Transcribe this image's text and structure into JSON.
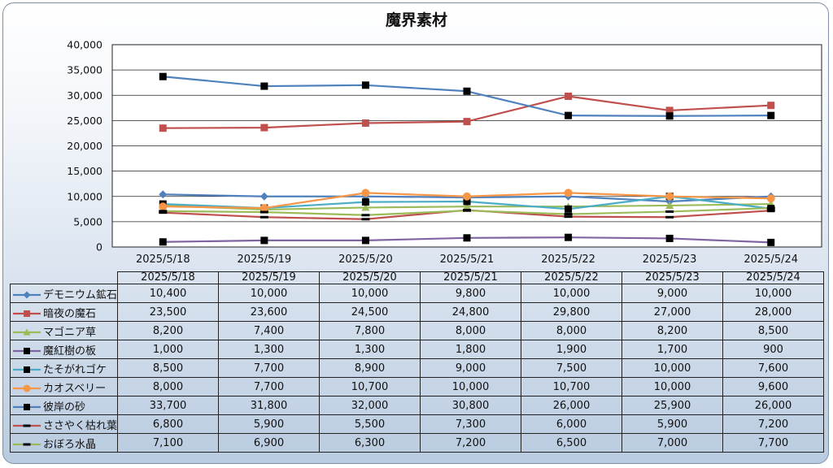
{
  "chart_data": {
    "type": "line",
    "title": "魔界素材",
    "categories": [
      "2025/5/18",
      "2025/5/19",
      "2025/5/20",
      "2025/5/21",
      "2025/5/22",
      "2025/5/23",
      "2025/5/24"
    ],
    "ylim": [
      0,
      40000
    ],
    "yticks": [
      "0",
      "5,000",
      "10,000",
      "15,000",
      "20,000",
      "25,000",
      "30,000",
      "35,000",
      "40,000"
    ],
    "grid": true,
    "legend": "data-table",
    "series": [
      {
        "name": "デモニウム鉱石",
        "color": "#4f81bd",
        "marker": "diamond",
        "values": [
          10400,
          10000,
          10000,
          9800,
          10000,
          9000,
          10000
        ],
        "labels": [
          "10,400",
          "10,000",
          "10,000",
          "9,800",
          "10,000",
          "9,000",
          "10,000"
        ]
      },
      {
        "name": "暗夜の魔石",
        "color": "#c0504d",
        "marker": "square",
        "values": [
          23500,
          23600,
          24500,
          24800,
          29800,
          27000,
          28000
        ],
        "labels": [
          "23,500",
          "23,600",
          "24,500",
          "24,800",
          "29,800",
          "27,000",
          "28,000"
        ]
      },
      {
        "name": "マゴニア草",
        "color": "#9bbb59",
        "marker": "triangle",
        "values": [
          8200,
          7400,
          7800,
          8000,
          8000,
          8200,
          8500
        ],
        "labels": [
          "8,200",
          "7,400",
          "7,800",
          "8,000",
          "8,000",
          "8,200",
          "8,500"
        ]
      },
      {
        "name": "魔紅樹の板",
        "color": "#8064a2",
        "marker": "blacksquare",
        "values": [
          1000,
          1300,
          1300,
          1800,
          1900,
          1700,
          900
        ],
        "labels": [
          "1,000",
          "1,300",
          "1,300",
          "1,800",
          "1,900",
          "1,700",
          "900"
        ]
      },
      {
        "name": "たそがれゴケ",
        "color": "#4bacc6",
        "marker": "blacksquare",
        "values": [
          8500,
          7700,
          8900,
          9000,
          7500,
          10000,
          7600
        ],
        "labels": [
          "8,500",
          "7,700",
          "8,900",
          "9,000",
          "7,500",
          "10,000",
          "7,600"
        ]
      },
      {
        "name": "カオスベリー",
        "color": "#f79646",
        "marker": "circle",
        "values": [
          8000,
          7700,
          10700,
          10000,
          10700,
          10000,
          9600
        ],
        "labels": [
          "8,000",
          "7,700",
          "10,700",
          "10,000",
          "10,700",
          "10,000",
          "9,600"
        ]
      },
      {
        "name": "彼岸の砂",
        "color": "#4f81bd",
        "marker": "blacksquare",
        "values": [
          33700,
          31800,
          32000,
          30800,
          26000,
          25900,
          26000
        ],
        "labels": [
          "33,700",
          "31,800",
          "32,000",
          "30,800",
          "26,000",
          "25,900",
          "26,000"
        ]
      },
      {
        "name": "ささやく枯れ葉",
        "color": "#c0504d",
        "marker": "dash",
        "values": [
          6800,
          5900,
          5500,
          7300,
          6000,
          5900,
          7200
        ],
        "labels": [
          "6,800",
          "5,900",
          "5,500",
          "7,300",
          "6,000",
          "5,900",
          "7,200"
        ]
      },
      {
        "name": "おぼろ水晶",
        "color": "#9bbb59",
        "marker": "dash",
        "values": [
          7100,
          6900,
          6300,
          7200,
          6500,
          7000,
          7700
        ],
        "labels": [
          "7,100",
          "6,900",
          "6,300",
          "7,200",
          "6,500",
          "7,000",
          "7,700"
        ]
      }
    ]
  }
}
